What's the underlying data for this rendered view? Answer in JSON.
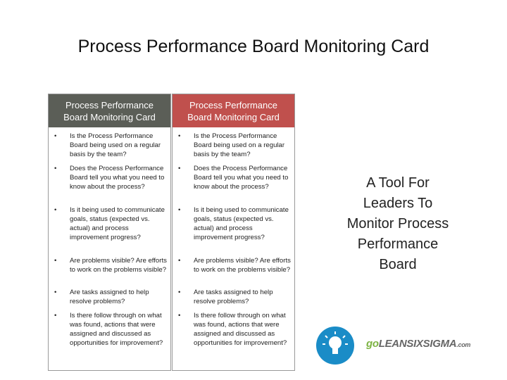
{
  "title": "Process Performance Board Monitoring Card",
  "cards": [
    {
      "header": "Process Performance Board Monitoring Card",
      "items": [
        "Is the Process Performance Board being used on a regular basis by the team?",
        "Does the Process Performance Board tell you what you need to know about the process?",
        "Is it being used to communicate goals, status (expected vs. actual) and process improvement progress?",
        "Are problems visible? Are efforts to work on the problems visible?",
        "Are tasks assigned to help resolve problems?",
        "Is there follow through on what was found, actions that were assigned and discussed as opportunities for improvement?"
      ]
    },
    {
      "header": "Process Performance Board Monitoring Card",
      "items": [
        "Is the Process Performance Board being used on a regular basis by the team?",
        "Does the Process Performance Board tell you what you need to know about the process?",
        "Is it being used to communicate goals, status (expected vs. actual) and process improvement progress?",
        "Are problems visible? Are efforts to work on the problems visible?",
        "Are tasks assigned to help resolve problems?",
        "Is there follow through on what was found, actions that were assigned and discussed as opportunities for improvement?"
      ]
    }
  ],
  "side_text": [
    "A Tool For",
    "Leaders To",
    "Monitor Process",
    "Performance",
    "Board"
  ],
  "logo": {
    "go": "go",
    "name": "LEANSIXSIGMA",
    "domain": ".com"
  }
}
